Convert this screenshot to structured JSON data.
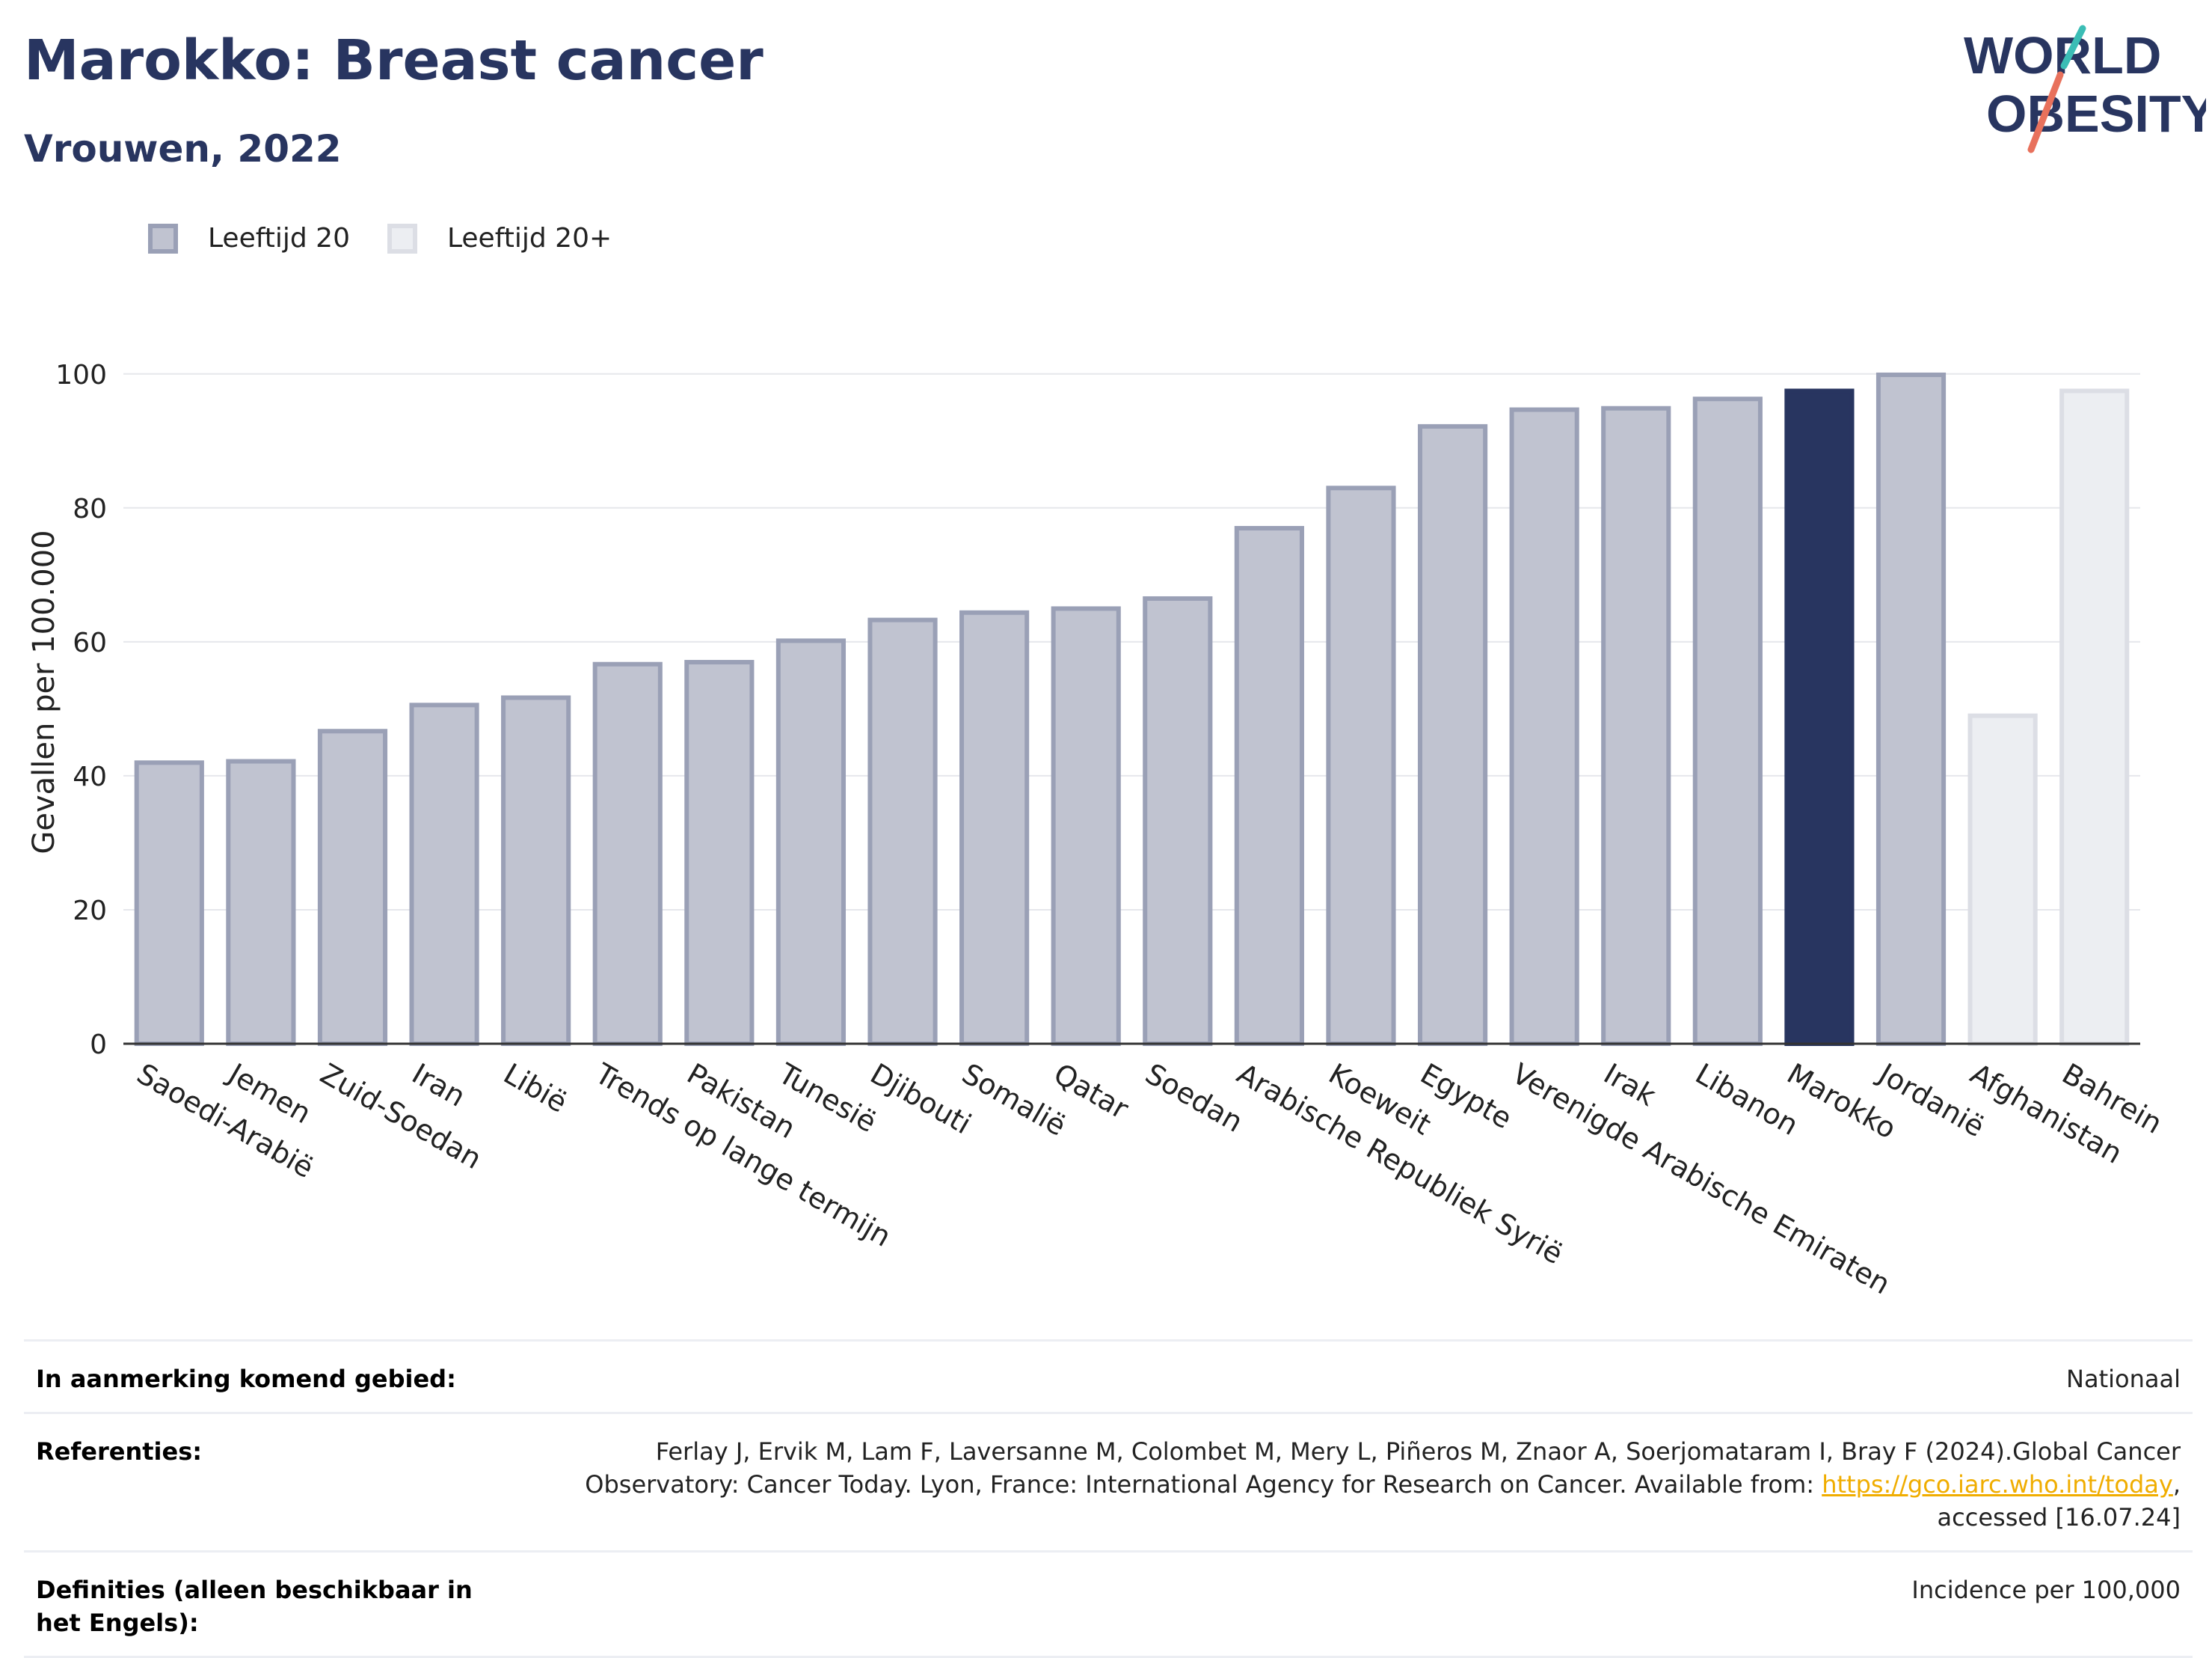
{
  "header": {
    "title": "Marokko: Breast cancer",
    "subtitle": "Vrouwen, 2022"
  },
  "logo": {
    "line1": "WORLD",
    "line2": "OBESITY"
  },
  "colors": {
    "bar_fill": "#c0c3d0",
    "bar_border": "#9aa0b6",
    "highlight": "#283560",
    "bar_light_fill": "#eceef2",
    "bar_light_border": "#dcdee5",
    "title_color": "#283560",
    "logo_teal": "#3bbdb5",
    "logo_coral": "#e8715c",
    "link": "#f0ad00"
  },
  "legend": [
    {
      "label": "Leeftijd 20",
      "color": "#c0c3d0"
    },
    {
      "label": "Leeftijd 20+",
      "color": "#eceef2"
    }
  ],
  "chart_data": {
    "type": "bar",
    "ylabel": "Gevallen per 100.000",
    "ylim": [
      0,
      105
    ],
    "yticks": [
      0,
      20,
      40,
      60,
      80,
      100
    ],
    "grid": true,
    "legend_position": "top-left",
    "categories": [
      "Saoedi-Arabië",
      "Jemen",
      "Zuid-Soedan",
      "Iran",
      "Libië",
      "Trends op lange termijn",
      "Pakistan",
      "Tunesië",
      "Djibouti",
      "Somalië",
      "Qatar",
      "Soedan",
      "Arabische Republiek Syrië",
      "Koeweit",
      "Egypte",
      "Verenigde Arabische Emiraten",
      "Irak",
      "Libanon",
      "Marokko",
      "Jordanië",
      "Afghanistan",
      "Bahrein"
    ],
    "values": [
      42.3,
      42.5,
      47.0,
      50.9,
      52.0,
      57.0,
      57.3,
      60.5,
      63.6,
      64.7,
      65.3,
      66.8,
      77.3,
      83.3,
      92.5,
      95.0,
      95.2,
      96.6,
      97.8,
      100.2,
      49.3,
      97.8
    ],
    "series_index": [
      0,
      0,
      0,
      0,
      0,
      0,
      0,
      0,
      0,
      0,
      0,
      0,
      0,
      0,
      0,
      0,
      0,
      0,
      0,
      0,
      1,
      1
    ],
    "highlight": "Marokko"
  },
  "footer": {
    "rows": [
      {
        "label": "In aanmerking komend gebied:",
        "value": "Nationaal"
      },
      {
        "label": "Referenties:",
        "line1": "Ferlay J, Ervik M, Lam F, Laversanne M, Colombet M, Mery L, Piñeros M, Znaor A, Soerjomataram I, Bray F (2024).Global Cancer",
        "line2_prefix": "Observatory: Cancer Today. Lyon, France: International Agency for Research on Cancer. Available from: ",
        "link": "https://gco.iarc.who.int/today",
        "line2_suffix": ",",
        "line3": "accessed [16.07.24]"
      },
      {
        "label": "Definities (alleen beschikbaar in het Engels):",
        "value": "Incidence per 100,000"
      }
    ]
  }
}
